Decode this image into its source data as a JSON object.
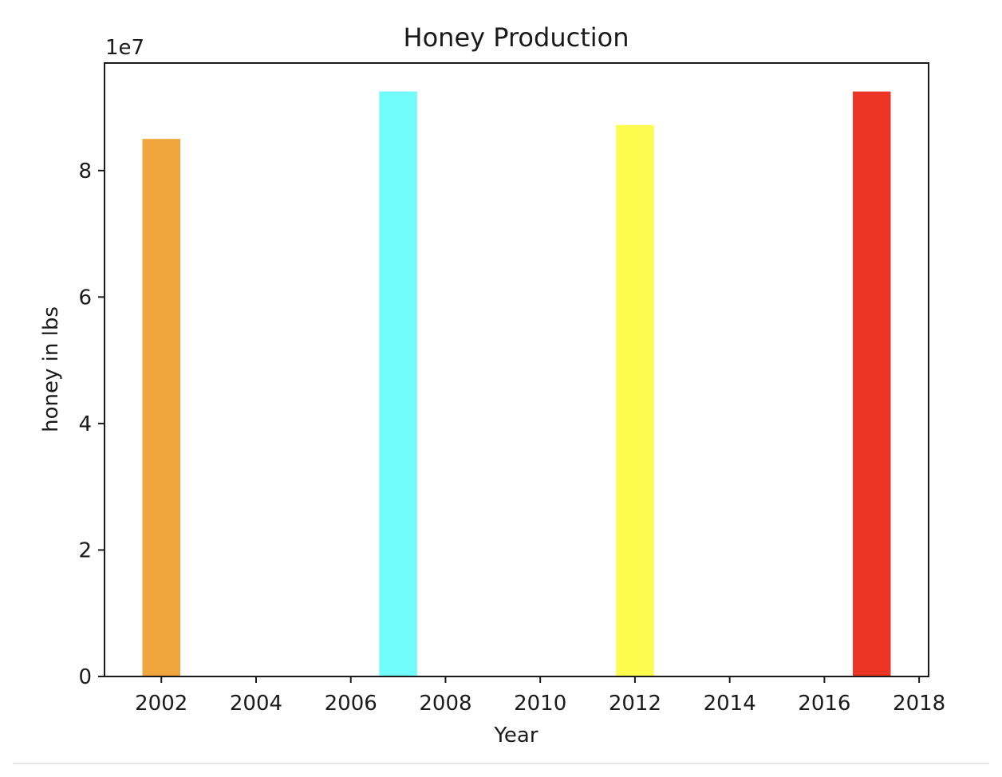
{
  "chart_data": {
    "type": "bar",
    "title": "Honey Production",
    "xlabel": "Year",
    "ylabel": "honey in lbs",
    "y_offset_label": "1e7",
    "x_values": [
      2002,
      2007,
      2012,
      2017
    ],
    "values": [
      85000000,
      92500000,
      87200000,
      92500000
    ],
    "bar_width_years": 0.8,
    "colors": [
      "#f0a63d",
      "#70fcfa",
      "#fdfc4e",
      "#ec3425"
    ],
    "xlim": [
      2000.8,
      2018.2
    ],
    "ylim": [
      0,
      97000000
    ],
    "x_ticks": [
      2002,
      2004,
      2006,
      2008,
      2010,
      2012,
      2014,
      2016,
      2018
    ],
    "x_tick_labels": [
      "2002",
      "2004",
      "2006",
      "2008",
      "2010",
      "2012",
      "2014",
      "2016",
      "2018"
    ],
    "y_ticks": [
      0,
      20000000,
      40000000,
      60000000,
      80000000
    ],
    "y_tick_labels": [
      "0",
      "2",
      "4",
      "6",
      "8"
    ],
    "grid": false,
    "legend": "none"
  }
}
